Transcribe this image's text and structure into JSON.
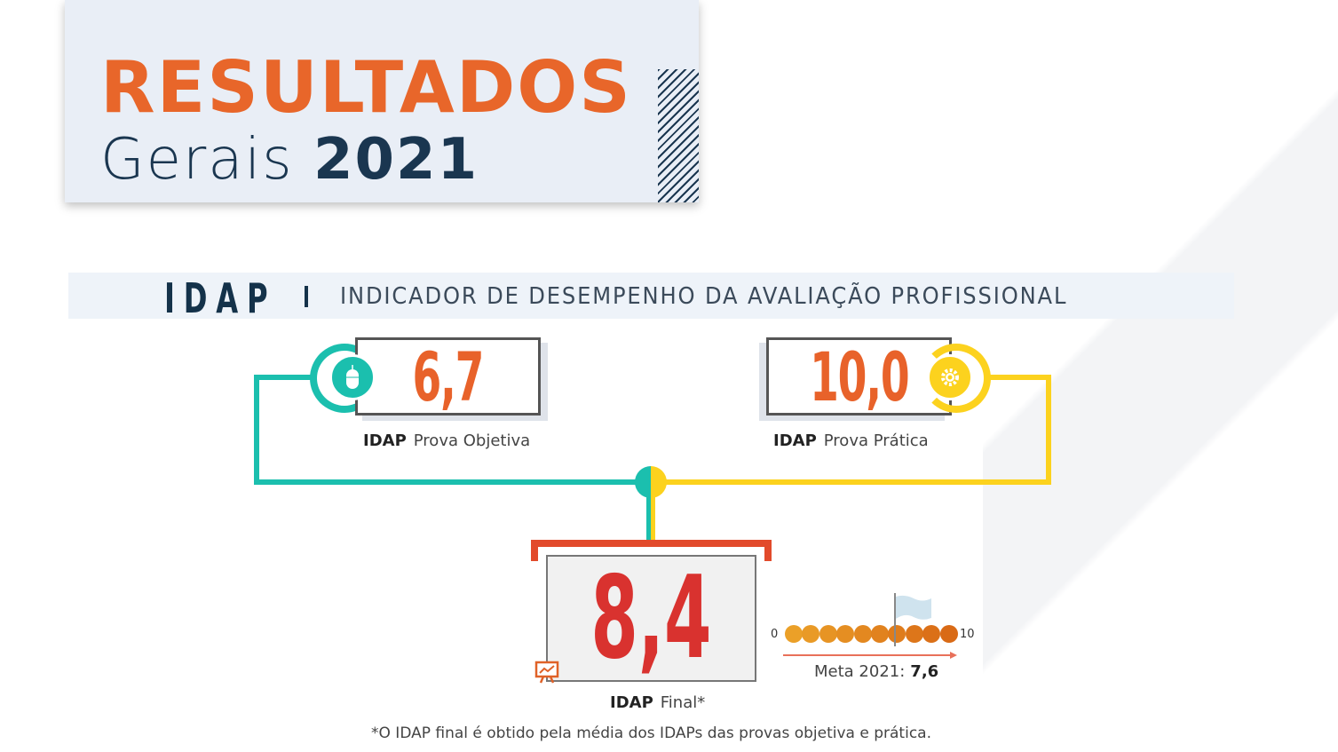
{
  "header": {
    "title": "RESULTADOS",
    "subtitle_light": "Gerais",
    "subtitle_year": "2021"
  },
  "banner": {
    "acronym": "IDAP",
    "description": "INDICADOR DE DESEMPENHO DA AVALIAÇÃO PROFISSIONAL"
  },
  "objetiva": {
    "value": "6,7",
    "label_bold": "IDAP",
    "label": "Prova Objetiva",
    "icon": "mouse-icon",
    "color": "#1bbfae"
  },
  "pratica": {
    "value": "10,0",
    "label_bold": "IDAP",
    "label": "Prova Prática",
    "icon": "gear-icon",
    "color": "#fcd21e"
  },
  "final": {
    "value": "8,4",
    "label_bold": "IDAP",
    "label": "Final*",
    "icon": "presentation-chart-icon"
  },
  "scale": {
    "min": "0",
    "max": "10",
    "dots": 10,
    "meta_label": "Meta 2021:",
    "meta_value": "7,6",
    "meta": 7.6
  },
  "footnote": "*O IDAP final é obtido pela média dos IDAPs das provas objetiva e prática.",
  "colors": {
    "orange": "#e8662a",
    "navy": "#14324a",
    "red": "#d9322f",
    "teal": "#1bbfae",
    "yellow": "#fcd21e"
  }
}
